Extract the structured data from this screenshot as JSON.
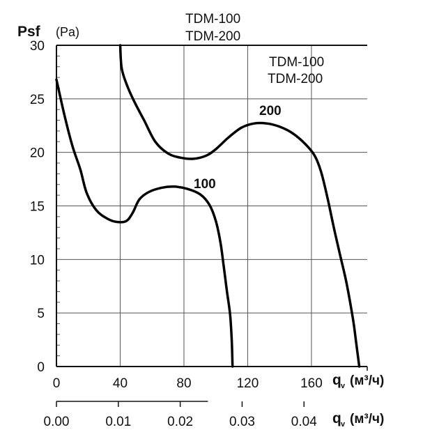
{
  "chart_data": {
    "type": "line",
    "title": "TDM-100\nTDM-200",
    "title_lines": [
      "TDM-100",
      "TDM-200"
    ],
    "legend_lines": [
      "TDM-100",
      "TDM-200"
    ],
    "ylabel": "Psf",
    "ylabel_unit": "(Pa)",
    "ylim": [
      0,
      30
    ],
    "yticks": [
      0,
      5,
      10,
      15,
      20,
      25,
      30
    ],
    "x": {
      "xlim": [
        0,
        195
      ],
      "xticks": [
        0,
        40,
        80,
        120,
        160
      ],
      "xlabel_symbol": "q",
      "xlabel_sub": "v",
      "xlabel_unit": "(м³/ч)"
    },
    "x2": {
      "ticks": [
        0.0,
        0.01,
        0.02,
        0.03,
        0.04
      ],
      "tick_labels": [
        "0.00",
        "0.01",
        "0.02",
        "0.03",
        "0.04"
      ],
      "per_primary_unit": 0.0002575,
      "xlabel_symbol": "q",
      "xlabel_sub": "v",
      "xlabel_unit": "(м³/ч)"
    },
    "grid": true,
    "legend_position": "top-right",
    "series": [
      {
        "name": "100",
        "color": "#000000",
        "points": [
          [
            0,
            26.8
          ],
          [
            5,
            23.5
          ],
          [
            10,
            20.6
          ],
          [
            15,
            18.4
          ],
          [
            19,
            16.2
          ],
          [
            25,
            14.6
          ],
          [
            32,
            13.8
          ],
          [
            38,
            13.5
          ],
          [
            44,
            13.6
          ],
          [
            48,
            14.4
          ],
          [
            52,
            15.6
          ],
          [
            58,
            16.3
          ],
          [
            66,
            16.7
          ],
          [
            74,
            16.8
          ],
          [
            82,
            16.6
          ],
          [
            90,
            16.1
          ],
          [
            96,
            15.1
          ],
          [
            100,
            13.6
          ],
          [
            103,
            11.5
          ],
          [
            105,
            9.3
          ],
          [
            107,
            7.0
          ],
          [
            109,
            4.8
          ],
          [
            110,
            2.4
          ],
          [
            110.5,
            0
          ]
        ]
      },
      {
        "name": "200",
        "color": "#000000",
        "points": [
          [
            40,
            30
          ],
          [
            41,
            27.8
          ],
          [
            45,
            26.0
          ],
          [
            50,
            24.4
          ],
          [
            55,
            23.0
          ],
          [
            62,
            21.0
          ],
          [
            70,
            19.9
          ],
          [
            78,
            19.5
          ],
          [
            86,
            19.4
          ],
          [
            94,
            19.7
          ],
          [
            100,
            20.3
          ],
          [
            108,
            21.4
          ],
          [
            116,
            22.3
          ],
          [
            124,
            22.7
          ],
          [
            132,
            22.7
          ],
          [
            140,
            22.4
          ],
          [
            148,
            21.8
          ],
          [
            156,
            20.8
          ],
          [
            162,
            19.7
          ],
          [
            166,
            18.2
          ],
          [
            170,
            15.8
          ],
          [
            174,
            13.0
          ],
          [
            178,
            10.4
          ],
          [
            182,
            7.8
          ],
          [
            186,
            4.5
          ],
          [
            188,
            2.3
          ],
          [
            190,
            0
          ]
        ]
      }
    ]
  }
}
